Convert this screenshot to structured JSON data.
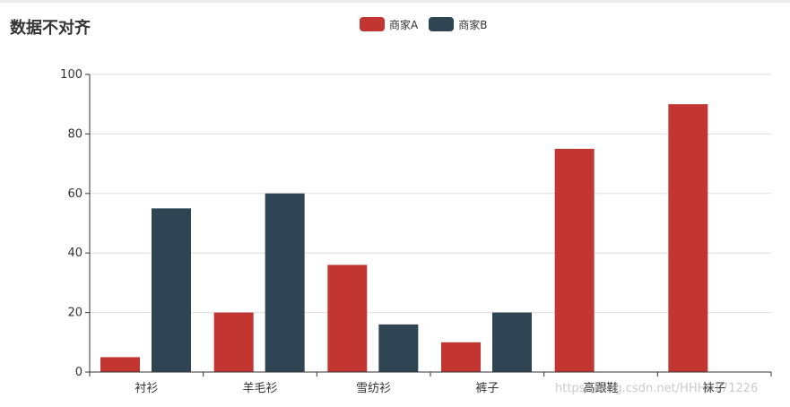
{
  "chart_data": {
    "type": "bar",
    "title": "数据不对齐",
    "categories": [
      "衬衫",
      "羊毛衫",
      "雪纺衫",
      "裤子",
      "高跟鞋",
      "袜子"
    ],
    "series": [
      {
        "name": "商家A",
        "color": "#c23531",
        "values": [
          5,
          20,
          36,
          10,
          75,
          90
        ]
      },
      {
        "name": "商家B",
        "color": "#2f4554",
        "values": [
          55,
          60,
          16,
          20,
          null,
          null
        ]
      }
    ],
    "xlabel": "",
    "ylabel": "",
    "ylim": [
      0,
      100
    ],
    "yticks": [
      0,
      20,
      40,
      60,
      80,
      100
    ],
    "grid": true,
    "legend_position": "top-center"
  },
  "watermark": "https://blog.csdn.net/HHH0171226"
}
